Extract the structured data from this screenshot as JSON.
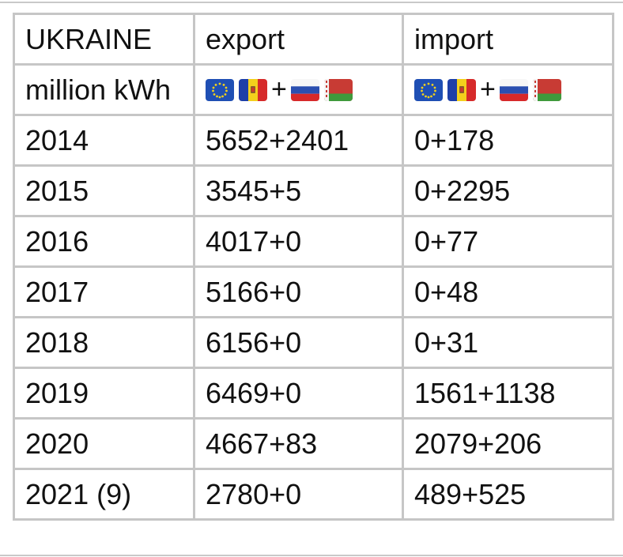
{
  "table": {
    "header": [
      "UKRAINE",
      "export",
      "import"
    ],
    "subheader_label": "million kWh",
    "flag_separators": [
      "+",
      "+"
    ],
    "rows": [
      [
        "2014",
        "5652+2401",
        "0+178"
      ],
      [
        "2015",
        "3545+5",
        "0+2295"
      ],
      [
        "2016",
        "4017+0",
        "0+77"
      ],
      [
        "2017",
        "5166+0",
        "0+48"
      ],
      [
        "2018",
        "6156+0",
        "0+31"
      ],
      [
        "2019",
        "6469+0",
        "1561+1138"
      ],
      [
        "2020",
        "4667+83",
        "2079+206"
      ],
      [
        "2021 (9)",
        "2780+0",
        "489+525"
      ]
    ]
  }
}
